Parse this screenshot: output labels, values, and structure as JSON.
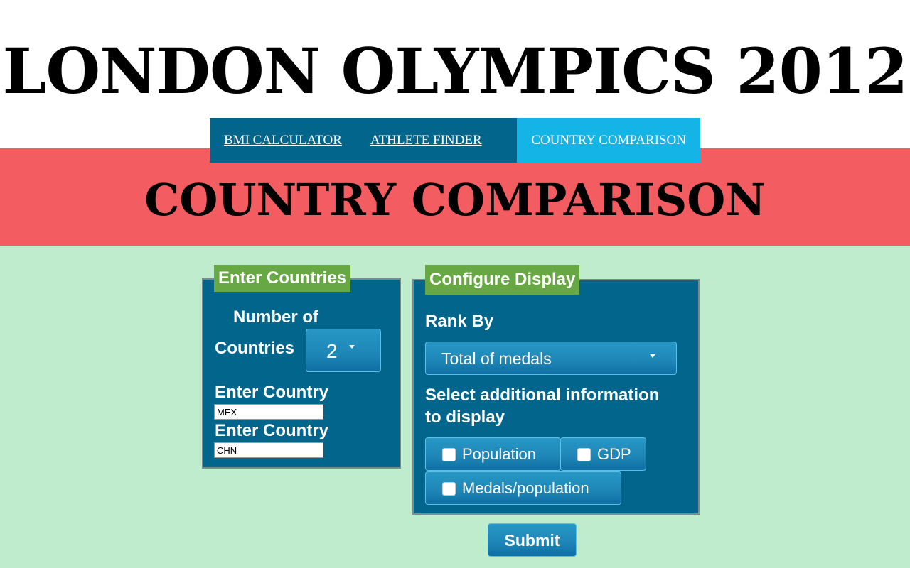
{
  "header": {
    "title": "LONDON OLYMPICS 2012"
  },
  "nav": {
    "items": [
      "BMI CALCULATOR",
      "ATHLETE FINDER",
      "COUNTRY COMPARISON"
    ],
    "active_index": 2
  },
  "page": {
    "title": "COUNTRY COMPARISON"
  },
  "countries_panel": {
    "legend": "Enter Countries",
    "number_label_1": "Number of",
    "number_label_2": "Countries",
    "number_value": "2",
    "country_label": "Enter Country",
    "countries": [
      "MEX",
      "CHN"
    ]
  },
  "display_panel": {
    "legend": "Configure Display",
    "rank_label": "Rank By",
    "rank_value": "Total of medals",
    "additional_label_1": "Select additional information",
    "additional_label_2": "to display",
    "options": [
      {
        "label": "Population",
        "checked": false
      },
      {
        "label": "GDP",
        "checked": false
      },
      {
        "label": "Medals/population",
        "checked": false
      }
    ]
  },
  "submit": {
    "label": "Submit"
  },
  "colors": {
    "hero": "#f35c61",
    "content": "#c0ecce",
    "nav": "#02658b",
    "nav_active": "#14b4e7",
    "panel": "#02658b",
    "legend": "#67a844"
  }
}
